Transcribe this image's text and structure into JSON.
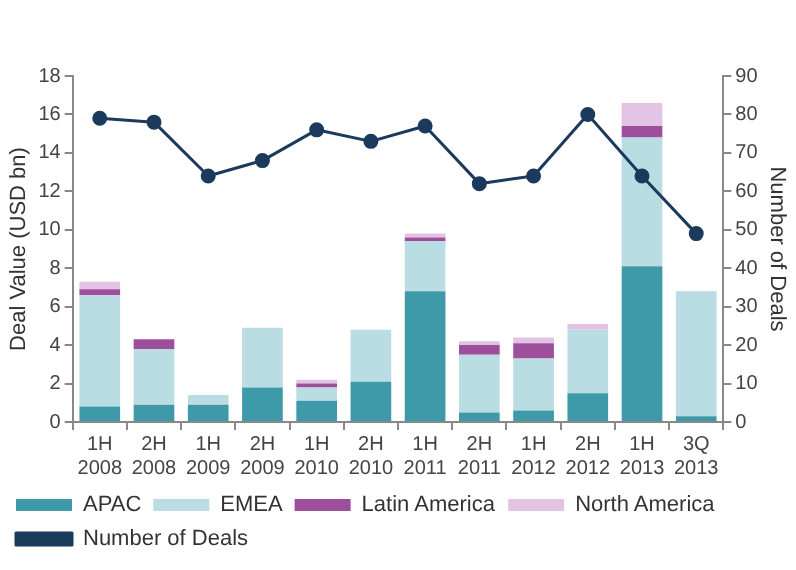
{
  "chart_data": {
    "type": "bar",
    "stacked": true,
    "ylabel": "Deal Value (USD bn)",
    "y2label": "Number of Deals",
    "categories": [
      "1H 2008",
      "2H 2008",
      "1H 2009",
      "2H 2009",
      "1H 2010",
      "2H 2010",
      "1H 2011",
      "2H 2011",
      "1H 2012",
      "2H 2012",
      "1H 2013",
      "3Q 2013"
    ],
    "series": [
      {
        "name": "APAC",
        "color": "#3e9aa8",
        "values": [
          0.8,
          0.9,
          0.9,
          1.8,
          1.1,
          2.1,
          6.8,
          0.5,
          0.6,
          1.5,
          8.1,
          0.3
        ]
      },
      {
        "name": "EMEA",
        "color": "#b9dde2",
        "values": [
          5.8,
          2.9,
          0.5,
          3.1,
          0.7,
          2.7,
          2.6,
          3.0,
          2.7,
          3.3,
          6.7,
          6.5
        ]
      },
      {
        "name": "Latin America",
        "color": "#9e4f9c",
        "values": [
          0.3,
          0.5,
          0,
          0,
          0.2,
          0,
          0.2,
          0.5,
          0.8,
          0,
          0.6,
          0
        ]
      },
      {
        "name": "North America",
        "color": "#e3c3e3",
        "values": [
          0.4,
          0,
          0,
          0,
          0.2,
          0,
          0.2,
          0.2,
          0.3,
          0.3,
          1.2,
          0
        ]
      },
      {
        "name": "Number of Deals",
        "type": "line",
        "axis": "y2",
        "color": "#1b3a5c",
        "values": [
          79,
          78,
          64,
          68,
          76,
          73,
          77,
          62,
          64,
          80,
          64,
          49
        ]
      }
    ],
    "ylim": [
      0,
      18
    ],
    "yticks": [
      0,
      2,
      4,
      6,
      8,
      10,
      12,
      14,
      16,
      18
    ],
    "y2lim": [
      0,
      90
    ],
    "y2ticks": [
      0,
      10,
      20,
      30,
      40,
      50,
      60,
      70,
      80,
      90
    ],
    "grid": false,
    "legend": "bottom",
    "marker": "circle"
  }
}
